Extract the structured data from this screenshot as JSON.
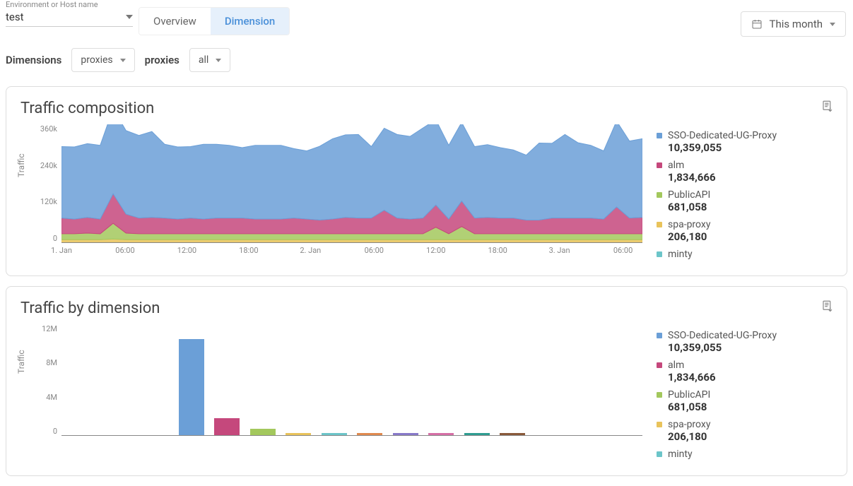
{
  "environment": {
    "label": "Environment or Host name",
    "value": "test"
  },
  "tabs": {
    "overview": "Overview",
    "dimension": "Dimension",
    "active": "dimension"
  },
  "date_range": {
    "label": "This month"
  },
  "filters": {
    "dimensions_label": "Dimensions",
    "dimension_dropdown": "proxies",
    "proxies_label": "proxies",
    "proxies_dropdown": "all"
  },
  "legend": [
    {
      "name": "SSO-Dedicated-UG-Proxy",
      "value": "10,359,055",
      "color": "#6b9fd7",
      "bar": 10359055
    },
    {
      "name": "alm",
      "value": "1,834,666",
      "color": "#c5487c",
      "bar": 1834666
    },
    {
      "name": "PublicAPI",
      "value": "681,058",
      "color": "#a3c85d",
      "bar": 681058
    },
    {
      "name": "spa-proxy",
      "value": "206,180",
      "color": "#e9c35b",
      "bar": 206180
    },
    {
      "name": "minty",
      "value": "",
      "color": "#6cc5c9",
      "bar": 190000
    }
  ],
  "extra_bars": [
    {
      "color": "#e08a4f",
      "bar": 150000
    },
    {
      "color": "#8879c9",
      "bar": 140000
    },
    {
      "color": "#d66fa6",
      "bar": 150000
    },
    {
      "color": "#2f9d91",
      "bar": 160000
    },
    {
      "color": "#8a5a3b",
      "bar": 120000
    }
  ],
  "panel1": {
    "title": "Traffic composition",
    "type": "area",
    "ylabel": "Traffic",
    "ylim": [
      0,
      360000
    ],
    "yticks": [
      "360k",
      "240k",
      "120k",
      "0"
    ],
    "xticks": [
      "1. Jan",
      "06:00",
      "12:00",
      "18:00",
      "2. Jan",
      "06:00",
      "12:00",
      "18:00",
      "3. Jan",
      "06:00"
    ],
    "series": {
      "sso": [
        218,
        220,
        225,
        225,
        260,
        255,
        252,
        262,
        225,
        220,
        218,
        228,
        225,
        222,
        215,
        225,
        225,
        225,
        212,
        208,
        225,
        245,
        252,
        255,
        218,
        250,
        255,
        252,
        275,
        260,
        225,
        240,
        218,
        222,
        215,
        208,
        198,
        235,
        228,
        255,
        230,
        222,
        208,
        262,
        235,
        240
      ],
      "alm": [
        48,
        45,
        48,
        45,
        90,
        58,
        48,
        50,
        48,
        45,
        48,
        45,
        48,
        48,
        48,
        45,
        45,
        45,
        48,
        45,
        42,
        45,
        50,
        48,
        48,
        72,
        48,
        45,
        48,
        68,
        45,
        78,
        48,
        50,
        48,
        48,
        42,
        42,
        48,
        48,
        48,
        48,
        45,
        82,
        48,
        50
      ],
      "pub": [
        18,
        18,
        20,
        18,
        48,
        20,
        18,
        18,
        18,
        18,
        18,
        18,
        18,
        18,
        18,
        18,
        18,
        18,
        18,
        18,
        18,
        18,
        18,
        18,
        18,
        18,
        18,
        18,
        18,
        38,
        18,
        40,
        18,
        18,
        18,
        18,
        18,
        18,
        18,
        18,
        18,
        18,
        18,
        18,
        18,
        18
      ],
      "spa": [
        8,
        8,
        8,
        8,
        10,
        8,
        8,
        8,
        8,
        8,
        8,
        8,
        8,
        8,
        8,
        8,
        8,
        8,
        8,
        8,
        8,
        8,
        8,
        8,
        8,
        8,
        8,
        8,
        8,
        8,
        8,
        8,
        8,
        8,
        8,
        8,
        8,
        8,
        8,
        8,
        8,
        8,
        8,
        8,
        8,
        8
      ]
    }
  },
  "panel2": {
    "title": "Traffic by dimension",
    "type": "bar",
    "ylabel": "Traffic",
    "ylim": [
      0,
      12000000
    ],
    "yticks": [
      "12M",
      "8M",
      "4M",
      "0"
    ]
  },
  "colors": {
    "grid": "#e5e5e5",
    "axis": "#888888"
  }
}
